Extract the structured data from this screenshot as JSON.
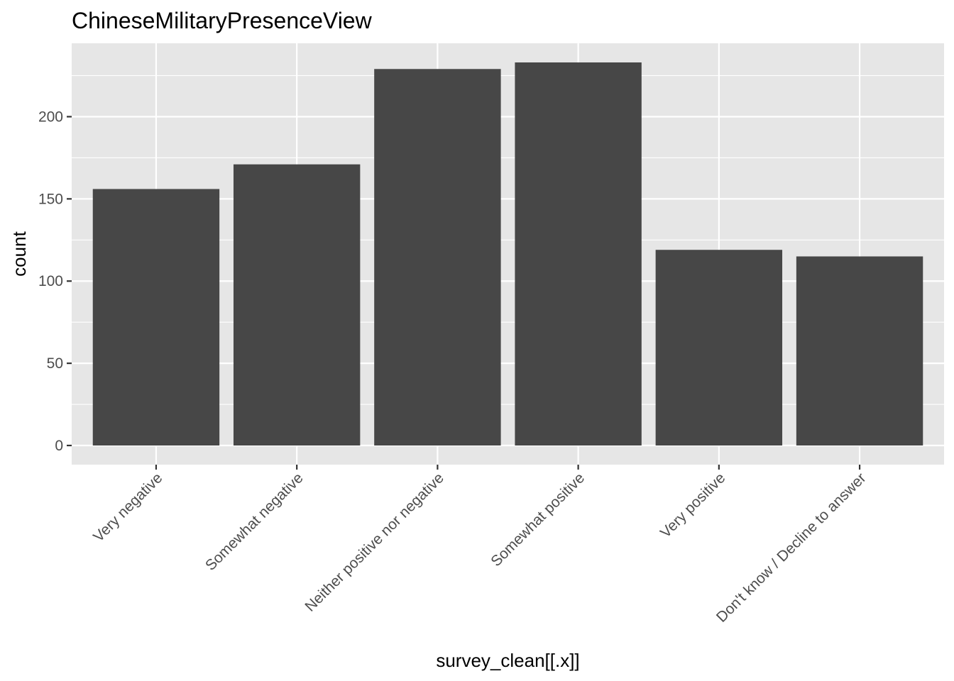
{
  "chart_data": {
    "type": "bar",
    "title": "ChineseMilitaryPresenceView",
    "xlabel": "survey_clean[[.x]]",
    "ylabel": "count",
    "categories": [
      "Very negative",
      "Somewhat negative",
      "Neither positive nor negative",
      "Somewhat positive",
      "Very positive",
      "Don't know / Decline to answer"
    ],
    "values": [
      156,
      171,
      229,
      233,
      119,
      115
    ],
    "ylim": [
      -11.65,
      244.65
    ],
    "yticks": [
      0,
      50,
      100,
      150,
      200
    ],
    "grid": true,
    "legend": "none",
    "colors": {
      "bar": "#474747",
      "panel": "#e6e6e6",
      "grid": "#ffffff",
      "tick_text": "#4d4d4d",
      "tick_mark": "#333333"
    }
  }
}
